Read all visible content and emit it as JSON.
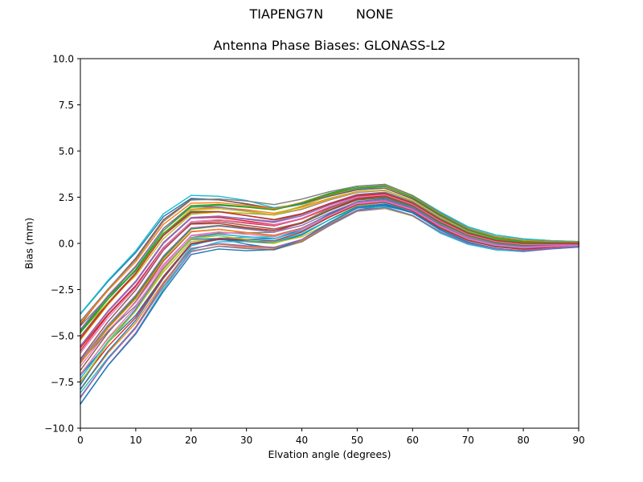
{
  "figure": {
    "suptitle": "TIAPENG7N        NONE",
    "title": "Antenna Phase Biases: GLONASS-L2",
    "xlabel": "Elvation angle (degrees)",
    "ylabel": "Bias (mm)"
  },
  "chart_data": {
    "type": "line",
    "suptitle": "TIAPENG7N        NONE",
    "title": "Antenna Phase Biases: GLONASS-L2",
    "xlabel": "Elvation angle (degrees)",
    "ylabel": "Bias (mm)",
    "xlim": [
      0,
      90
    ],
    "ylim": [
      -10.0,
      10.0
    ],
    "xticks": [
      0,
      10,
      20,
      30,
      40,
      50,
      60,
      70,
      80,
      90
    ],
    "xtick_labels": [
      "0",
      "10",
      "20",
      "30",
      "40",
      "50",
      "60",
      "70",
      "80",
      "90"
    ],
    "yticks": [
      10.0,
      7.5,
      5.0,
      2.5,
      0.0,
      -2.5,
      -5.0,
      -7.5,
      -10.0
    ],
    "ytick_labels": [
      "10.0",
      "7.5",
      "5.0",
      "2.5",
      "0.0",
      "−2.5",
      "−5.0",
      "−7.5",
      "−10.0"
    ],
    "grid": false,
    "legend": false,
    "x": [
      0,
      5,
      10,
      15,
      20,
      25,
      30,
      35,
      40,
      45,
      50,
      55,
      60,
      65,
      70,
      75,
      80,
      85,
      90
    ],
    "bundle": {
      "n_lines": 45,
      "note": "Dense unlabeled bundle of phase-bias curves (one per satellite/antenna), values in mm read as an envelope vs elevation angle",
      "envelope_top": [
        -3.8,
        -2.0,
        -0.4,
        1.6,
        2.6,
        2.55,
        2.35,
        2.1,
        2.4,
        2.8,
        3.1,
        3.2,
        2.6,
        1.7,
        0.9,
        0.45,
        0.25,
        0.15,
        0.1
      ],
      "envelope_bottom": [
        -8.7,
        -6.6,
        -4.9,
        -2.6,
        -0.6,
        -0.3,
        -0.4,
        -0.45,
        0.0,
        0.9,
        1.7,
        1.85,
        1.45,
        0.55,
        -0.05,
        -0.35,
        -0.45,
        -0.3,
        -0.2
      ]
    },
    "palette": [
      "#1f77b4",
      "#ff7f0e",
      "#2ca02c",
      "#d62728",
      "#9467bd",
      "#8c564b",
      "#e377c2",
      "#7f7f7f",
      "#bcbd22",
      "#17becf"
    ],
    "axis_color": "#000000",
    "background": "#ffffff"
  }
}
